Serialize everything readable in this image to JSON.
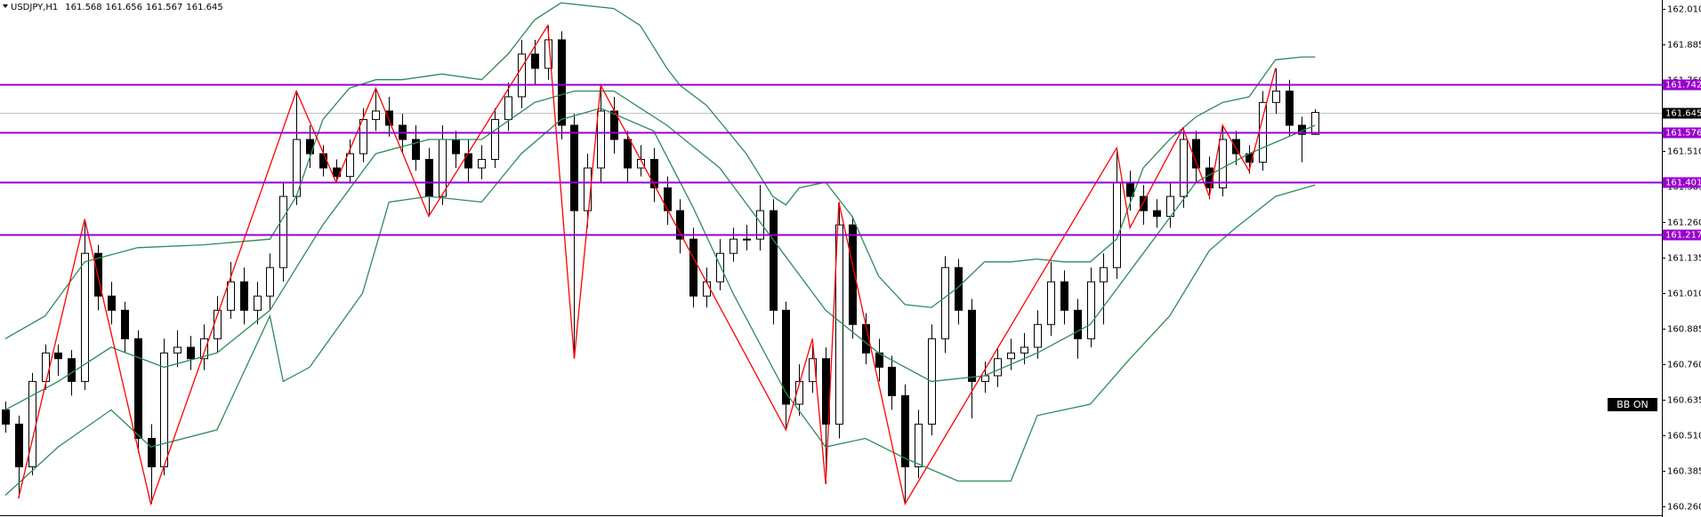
{
  "header": {
    "symbol": "USDJPY,H1",
    "open": "161.568",
    "high": "161.656",
    "low": "161.567",
    "close": "161.645"
  },
  "button": "BB ON",
  "chart_data": {
    "type": "candlestick",
    "xlim": [
      -0.4,
      125.2
    ],
    "ylim": [
      160.23,
      162.04
    ],
    "yticks": [
      {
        "value": 162.01,
        "label": "162.010"
      },
      {
        "value": 161.885,
        "label": "161.885"
      },
      {
        "value": 161.76,
        "label": "161.760"
      },
      {
        "value": 161.635,
        "label": "161.635"
      },
      {
        "value": 161.51,
        "label": "161.510"
      },
      {
        "value": 161.385,
        "label": "161.385"
      },
      {
        "value": 161.26,
        "label": "161.260"
      },
      {
        "value": 161.135,
        "label": "161.135"
      },
      {
        "value": 161.01,
        "label": "161.010"
      },
      {
        "value": 160.885,
        "label": "160.885"
      },
      {
        "value": 160.76,
        "label": "160.760"
      },
      {
        "value": 160.635,
        "label": "160.635"
      },
      {
        "value": 160.51,
        "label": "160.510"
      },
      {
        "value": 160.385,
        "label": "160.385"
      },
      {
        "value": 160.26,
        "label": "160.260"
      }
    ],
    "bull_color": "#ffffff",
    "bear_color": "#000000",
    "open": [
      160.6,
      160.55,
      160.4,
      160.7,
      160.8,
      160.78,
      160.7,
      161.15,
      161.0,
      160.95,
      160.85,
      160.5,
      160.4,
      160.8,
      160.82,
      160.78,
      160.85,
      160.95,
      161.05,
      160.95,
      161.0,
      161.1,
      161.35,
      161.55,
      161.5,
      161.45,
      161.42,
      161.5,
      161.62,
      161.65,
      161.6,
      161.55,
      161.48,
      161.35,
      161.55,
      161.5,
      161.45,
      161.48,
      161.62,
      161.7,
      161.85,
      161.8,
      161.9,
      161.6,
      161.3,
      161.45,
      161.65,
      161.55,
      161.45,
      161.48,
      161.38,
      161.3,
      161.2,
      161.0,
      161.05,
      161.15,
      161.2,
      161.2,
      161.3,
      160.95,
      160.62,
      160.7,
      160.78,
      160.55,
      161.25,
      160.9,
      160.8,
      160.75,
      160.65,
      160.4,
      160.55,
      160.85,
      161.1,
      160.95,
      160.7,
      160.72,
      160.78,
      160.8,
      160.82,
      160.9,
      161.05,
      160.95,
      160.85,
      161.05,
      161.1,
      161.4,
      161.35,
      161.3,
      161.28,
      161.35,
      161.55,
      161.45,
      161.38,
      161.55,
      161.5,
      161.47,
      161.68,
      161.72,
      161.6,
      161.568
    ],
    "high": [
      160.63,
      160.58,
      160.73,
      160.83,
      160.83,
      160.81,
      161.27,
      161.18,
      161.05,
      160.98,
      160.88,
      160.55,
      160.85,
      160.88,
      160.86,
      160.9,
      161.0,
      161.12,
      161.1,
      161.05,
      161.15,
      161.4,
      161.72,
      161.6,
      161.53,
      161.48,
      161.55,
      161.66,
      161.73,
      161.7,
      161.64,
      161.6,
      161.52,
      161.6,
      161.58,
      161.55,
      161.53,
      161.66,
      161.75,
      161.9,
      161.9,
      161.95,
      161.93,
      161.64,
      161.5,
      161.74,
      161.7,
      161.58,
      161.53,
      161.52,
      161.42,
      161.34,
      161.24,
      161.1,
      161.2,
      161.24,
      161.25,
      161.39,
      161.34,
      160.98,
      160.76,
      160.85,
      160.82,
      161.33,
      161.28,
      160.94,
      160.85,
      160.79,
      160.69,
      160.6,
      160.9,
      161.14,
      161.13,
      160.99,
      160.77,
      160.82,
      160.85,
      160.87,
      160.95,
      161.12,
      161.09,
      160.99,
      161.1,
      161.15,
      161.52,
      161.44,
      161.39,
      161.34,
      161.4,
      161.59,
      161.58,
      161.49,
      161.6,
      161.58,
      161.53,
      161.72,
      161.8,
      161.76,
      161.63,
      161.656
    ],
    "low": [
      160.52,
      160.29,
      160.37,
      160.67,
      160.72,
      160.65,
      160.67,
      160.95,
      160.9,
      160.8,
      160.45,
      160.27,
      160.37,
      160.75,
      160.74,
      160.74,
      160.8,
      160.92,
      160.9,
      160.9,
      160.95,
      161.05,
      161.32,
      161.45,
      161.42,
      161.4,
      161.4,
      161.47,
      161.58,
      161.56,
      161.5,
      161.44,
      161.28,
      161.32,
      161.45,
      161.4,
      161.41,
      161.45,
      161.58,
      161.66,
      161.74,
      161.76,
      161.55,
      160.78,
      161.24,
      161.4,
      161.5,
      161.4,
      161.42,
      161.33,
      161.25,
      161.15,
      160.96,
      160.96,
      161.02,
      161.12,
      161.16,
      161.16,
      160.9,
      160.53,
      160.58,
      160.66,
      160.34,
      160.5,
      160.85,
      160.76,
      160.7,
      160.6,
      160.27,
      160.36,
      160.51,
      160.8,
      160.9,
      160.57,
      160.66,
      160.68,
      160.74,
      160.76,
      160.78,
      160.86,
      160.9,
      160.78,
      160.82,
      160.9,
      161.06,
      161.3,
      161.25,
      161.24,
      161.24,
      161.31,
      161.4,
      161.34,
      161.35,
      161.46,
      161.43,
      161.44,
      161.64,
      161.56,
      161.47,
      161.567
    ],
    "close": [
      160.55,
      160.4,
      160.7,
      160.8,
      160.78,
      160.7,
      161.15,
      161.0,
      160.95,
      160.85,
      160.5,
      160.4,
      160.8,
      160.82,
      160.78,
      160.85,
      160.95,
      161.05,
      160.95,
      161.0,
      161.1,
      161.35,
      161.55,
      161.5,
      161.45,
      161.42,
      161.5,
      161.62,
      161.65,
      161.6,
      161.55,
      161.48,
      161.35,
      161.55,
      161.5,
      161.45,
      161.48,
      161.62,
      161.7,
      161.85,
      161.8,
      161.9,
      161.6,
      161.3,
      161.45,
      161.65,
      161.55,
      161.45,
      161.48,
      161.38,
      161.3,
      161.2,
      161.0,
      161.05,
      161.15,
      161.2,
      161.2,
      161.3,
      160.95,
      160.62,
      160.7,
      160.78,
      160.55,
      161.25,
      160.9,
      160.8,
      160.75,
      160.65,
      160.4,
      160.55,
      160.85,
      161.1,
      160.95,
      160.7,
      160.72,
      160.78,
      160.8,
      160.82,
      160.9,
      161.05,
      160.95,
      160.85,
      161.05,
      161.1,
      161.4,
      161.35,
      161.3,
      161.28,
      161.35,
      161.55,
      161.45,
      161.38,
      161.55,
      161.5,
      161.47,
      161.68,
      161.72,
      161.6,
      161.568,
      161.645
    ],
    "zigzag": {
      "color": "#ff0000",
      "x": [
        1,
        6,
        11,
        22,
        25,
        28,
        32,
        41,
        43,
        45,
        59,
        61,
        62,
        63,
        68,
        84,
        85,
        89,
        91,
        92,
        94,
        96
      ],
      "values": [
        160.29,
        161.27,
        160.27,
        161.72,
        161.4,
        161.73,
        161.28,
        161.95,
        160.78,
        161.74,
        160.53,
        160.85,
        160.34,
        161.33,
        160.27,
        161.52,
        161.24,
        161.59,
        161.35,
        161.6,
        161.44,
        161.8
      ]
    },
    "bands": [
      {
        "color": "#2e8b57",
        "x": [
          0,
          3,
          6,
          10,
          15,
          20,
          22,
          24,
          26,
          28,
          30,
          33,
          36,
          38,
          40,
          42,
          46,
          48,
          50,
          51,
          53,
          56,
          58,
          59,
          60,
          62,
          64,
          66,
          68,
          70,
          72,
          74,
          76,
          78,
          80,
          82,
          84,
          86,
          88,
          90,
          92,
          94,
          96,
          98,
          99
        ],
        "values": [
          160.85,
          160.93,
          161.12,
          161.17,
          161.18,
          161.2,
          161.35,
          161.62,
          161.73,
          161.76,
          161.76,
          161.78,
          161.76,
          161.85,
          161.97,
          162.03,
          162.01,
          161.95,
          161.8,
          161.74,
          161.67,
          161.5,
          161.35,
          161.32,
          161.38,
          161.4,
          161.28,
          161.07,
          160.97,
          160.96,
          161.03,
          161.12,
          161.12,
          161.13,
          161.12,
          161.12,
          161.2,
          161.45,
          161.55,
          161.63,
          161.68,
          161.7,
          161.83,
          161.84,
          161.84
        ]
      },
      {
        "color": "#2e8b57",
        "x": [
          0,
          4,
          8,
          12,
          16,
          20,
          24,
          28,
          32,
          36,
          40,
          43,
          46,
          50,
          54,
          58,
          62,
          66,
          70,
          74,
          78,
          82,
          86,
          90,
          94,
          99
        ],
        "values": [
          160.6,
          160.7,
          160.82,
          160.75,
          160.8,
          160.95,
          161.25,
          161.5,
          161.55,
          161.55,
          161.68,
          161.72,
          161.72,
          161.6,
          161.45,
          161.2,
          160.95,
          160.8,
          160.7,
          160.72,
          160.8,
          160.9,
          161.15,
          161.4,
          161.5,
          161.6
        ]
      },
      {
        "color": "#2e8b57",
        "x": [
          0,
          4,
          8,
          11,
          16,
          20,
          21,
          23,
          27,
          29,
          32,
          36,
          39,
          42,
          45,
          49,
          52,
          55,
          59,
          62,
          65,
          68,
          72,
          76,
          78,
          82,
          85,
          88,
          91,
          93,
          96,
          99
        ],
        "values": [
          160.3,
          160.47,
          160.6,
          160.47,
          160.53,
          160.93,
          160.7,
          160.75,
          161.01,
          161.33,
          161.35,
          161.33,
          161.5,
          161.62,
          161.66,
          161.58,
          161.31,
          161.01,
          160.66,
          160.47,
          160.5,
          160.43,
          160.35,
          160.35,
          160.58,
          160.62,
          160.78,
          160.93,
          161.16,
          161.24,
          161.35,
          161.39
        ]
      }
    ],
    "levels": {
      "color": "#9900cc",
      "values": [
        {
          "value": 161.742,
          "label": "161.742"
        },
        {
          "value": 161.576,
          "label": "161.576"
        },
        {
          "value": 161.401,
          "label": "161.401"
        },
        {
          "value": 161.217,
          "label": "161.217"
        }
      ]
    },
    "last_price": {
      "value": 161.645,
      "label": "161.645"
    }
  }
}
